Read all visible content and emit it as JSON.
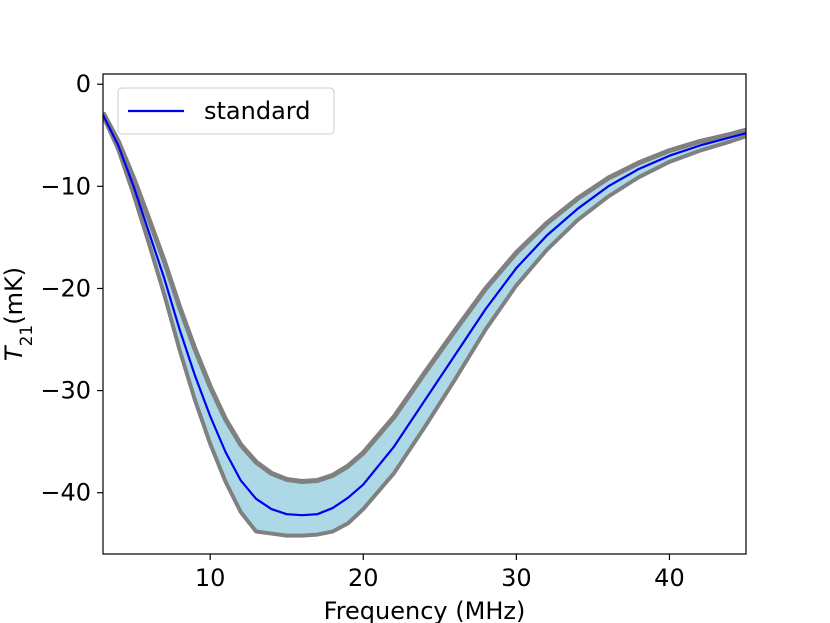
{
  "chart_data": {
    "type": "line",
    "title": "",
    "xlabel": "Frequency (MHz)",
    "ylabel": {
      "base": "T",
      "sub": "21",
      "rest": "(mK)"
    },
    "xlim": [
      3,
      45
    ],
    "ylim": [
      -46,
      1
    ],
    "xticks": [
      10,
      20,
      30,
      40
    ],
    "yticks": [
      0,
      -10,
      -20,
      -30,
      -40
    ],
    "xtick_labels": [
      "10",
      "20",
      "30",
      "40"
    ],
    "ytick_labels": [
      "0",
      "−10",
      "−20",
      "−30",
      "−40"
    ],
    "grid": false,
    "legend": {
      "placement": "top-left",
      "entries": [
        "standard"
      ]
    },
    "colors": {
      "line": "#0000ee",
      "band_fill": "#add8e6",
      "band_edge": "#808080"
    },
    "series": [
      {
        "name": "standard",
        "x": [
          3,
          4,
          5,
          6,
          7,
          8,
          9,
          10,
          11,
          12,
          13,
          14,
          15,
          16,
          17,
          18,
          19,
          20,
          22,
          24,
          26,
          28,
          30,
          32,
          34,
          36,
          38,
          40,
          42,
          44,
          45
        ],
        "y": [
          -3,
          -6,
          -10,
          -14.5,
          -19,
          -24,
          -28.5,
          -32.5,
          -36,
          -38.8,
          -40.6,
          -41.6,
          -42.1,
          -42.2,
          -42.1,
          -41.5,
          -40.5,
          -39.2,
          -35.5,
          -31,
          -26.5,
          -22,
          -18,
          -14.8,
          -12.2,
          -10,
          -8.3,
          -7,
          -6,
          -5.2,
          -4.8
        ]
      }
    ],
    "band": {
      "x": [
        3,
        4,
        5,
        6,
        7,
        8,
        9,
        10,
        11,
        12,
        13,
        14,
        15,
        16,
        17,
        18,
        19,
        20,
        22,
        24,
        26,
        28,
        30,
        32,
        34,
        36,
        38,
        40,
        42,
        44,
        45
      ],
      "upper": [
        -2.8,
        -5.6,
        -9.2,
        -13.2,
        -17.3,
        -21.8,
        -25.9,
        -29.6,
        -32.8,
        -35.3,
        -37,
        -38.1,
        -38.7,
        -38.9,
        -38.8,
        -38.3,
        -37.4,
        -36.1,
        -32.6,
        -28.3,
        -24.1,
        -20,
        -16.5,
        -13.6,
        -11.2,
        -9.2,
        -7.7,
        -6.5,
        -5.6,
        -4.9,
        -4.5
      ],
      "lower": [
        -3.1,
        -6.4,
        -10.8,
        -15.6,
        -20.6,
        -26,
        -30.9,
        -35.2,
        -38.9,
        -41.9,
        -43.8,
        -44,
        -44.2,
        -44.2,
        -44.1,
        -43.8,
        -43,
        -41.6,
        -38.1,
        -33.6,
        -28.9,
        -24,
        -19.7,
        -16.2,
        -13.3,
        -11,
        -9.1,
        -7.6,
        -6.5,
        -5.6,
        -5.1
      ]
    }
  }
}
